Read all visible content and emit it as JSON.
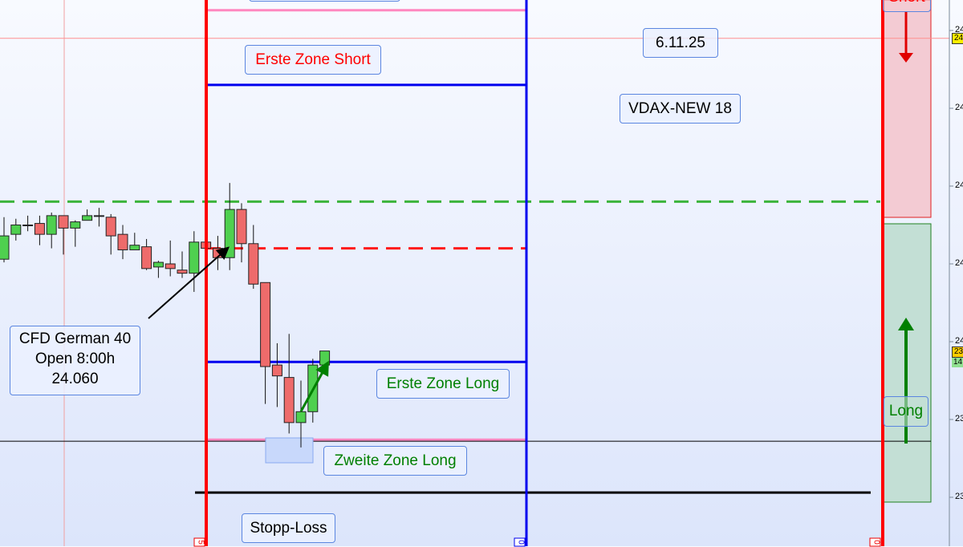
{
  "chart_data": {
    "type": "candlestick",
    "ylim": [
      23860,
      24225
    ],
    "candles": [
      {
        "o": 24053,
        "h": 24080,
        "l": 24051,
        "c": 24068
      },
      {
        "o": 24069,
        "h": 24079,
        "l": 24065,
        "c": 24075
      },
      {
        "o": 24075,
        "h": 24081,
        "l": 24071,
        "c": 24075
      },
      {
        "o": 24076,
        "h": 24081,
        "l": 24062,
        "c": 24069
      },
      {
        "o": 24069,
        "h": 24083,
        "l": 24060,
        "c": 24081
      },
      {
        "o": 24081,
        "h": 24081,
        "l": 24056,
        "c": 24073
      },
      {
        "o": 24073,
        "h": 24078,
        "l": 24061,
        "c": 24077
      },
      {
        "o": 24078,
        "h": 24085,
        "l": 24078,
        "c": 24081
      },
      {
        "o": 24081,
        "h": 24086,
        "l": 24074,
        "c": 24081
      },
      {
        "o": 24080,
        "h": 24082,
        "l": 24056,
        "c": 24068
      },
      {
        "o": 24069,
        "h": 24075,
        "l": 24053,
        "c": 24059
      },
      {
        "o": 24059,
        "h": 24070,
        "l": 24059,
        "c": 24062
      },
      {
        "o": 24061,
        "h": 24066,
        "l": 24046,
        "c": 24047
      },
      {
        "o": 24048,
        "h": 24052,
        "l": 24041,
        "c": 24051
      },
      {
        "o": 24050,
        "h": 24065,
        "l": 24042,
        "c": 24047
      },
      {
        "o": 24046,
        "h": 24058,
        "l": 24041,
        "c": 24044
      },
      {
        "o": 24044,
        "h": 24071,
        "l": 24032,
        "c": 24064
      },
      {
        "o": 24064,
        "h": 24066,
        "l": 24056,
        "c": 24060
      },
      {
        "o": 24060,
        "h": 24068,
        "l": 24046,
        "c": 24054
      },
      {
        "o": 24054,
        "h": 24102,
        "l": 24046,
        "c": 24085
      },
      {
        "o": 24085,
        "h": 24089,
        "l": 24051,
        "c": 24063
      },
      {
        "o": 24063,
        "h": 24075,
        "l": 24034,
        "c": 24037
      },
      {
        "o": 24038,
        "h": 24038,
        "l": 23960,
        "c": 23984
      },
      {
        "o": 23985,
        "h": 23999,
        "l": 23958,
        "c": 23978
      },
      {
        "o": 23977,
        "h": 24005,
        "l": 23941,
        "c": 23948
      },
      {
        "o": 23948,
        "h": 23975,
        "l": 23932,
        "c": 23955
      },
      {
        "o": 23955,
        "h": 23989,
        "l": 23948,
        "c": 23985
      },
      {
        "o": 23985,
        "h": 23994,
        "l": 23985,
        "c": 23994
      }
    ],
    "horizontal_lines": [
      {
        "price": 24213,
        "color": "#ff88c0",
        "style": "solid"
      },
      {
        "price": 24195,
        "color": "#ff9090",
        "style": "thin"
      },
      {
        "price": 24165,
        "color": "#0000ee",
        "style": "solid"
      },
      {
        "price": 24090,
        "color": "#3cb43c",
        "style": "dashed"
      },
      {
        "price": 24060,
        "color": "#ff1a1a",
        "style": "dashed"
      },
      {
        "price": 23987,
        "color": "#0000ee",
        "style": "solid"
      },
      {
        "price": 23937,
        "color": "#ff88c0",
        "style": "solid"
      },
      {
        "price": 23936,
        "color": "#000000",
        "style": "thin"
      },
      {
        "price": 23903,
        "color": "#000000",
        "style": "solid"
      }
    ],
    "colors": {
      "up": "#4fd04f",
      "down": "#ee6b6b",
      "session_start": "#ff0000",
      "session_mid": "#0000ee"
    },
    "axis_tick_labels": [
      "24",
      "24",
      "24",
      "24",
      "24",
      "23",
      "23"
    ],
    "price_tags": [
      {
        "text": "24",
        "color": "#ffee00"
      },
      {
        "text": "23",
        "color": "#ffcc00"
      },
      {
        "text": "14",
        "color": "#90e090"
      }
    ],
    "vline_tags": [
      "5",
      "0",
      "0"
    ]
  },
  "annotations": {
    "top_box": "",
    "cfd": [
      "CFD German 40",
      "Open 8:00h",
      "24.060"
    ],
    "erste_short": "Erste Zone Short",
    "date": "6.11.25",
    "vdax": "VDAX-NEW 18",
    "erste_long": "Erste Zone Long",
    "zweite_long": "Zweite Zone Long",
    "stop": "Stopp-Loss",
    "long": "Long",
    "short": "Short"
  }
}
